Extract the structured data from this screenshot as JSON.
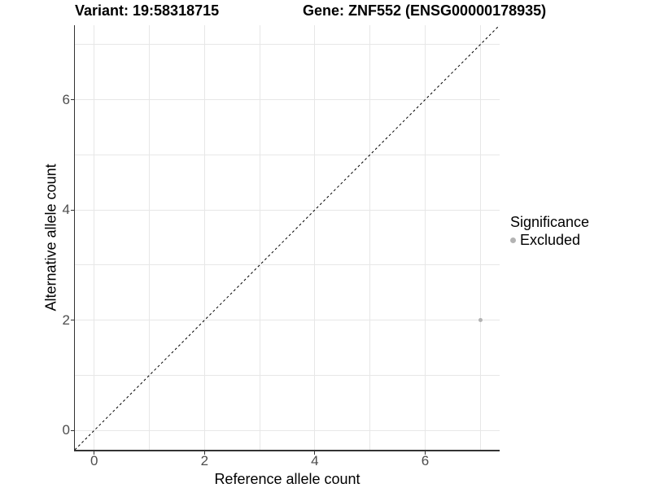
{
  "chart_data": {
    "type": "scatter",
    "title_left": "Variant: 19:58318715",
    "title_right": "Gene: ZNF552 (ENSG00000178935)",
    "xlabel": "Reference allele count",
    "ylabel": "Alternative allele count",
    "xlim": [
      -0.35,
      7.35
    ],
    "ylim": [
      -0.35,
      7.35
    ],
    "x_ticks": [
      0,
      2,
      4,
      6
    ],
    "y_ticks": [
      0,
      2,
      4,
      6
    ],
    "grid_positions": [
      0,
      1,
      2,
      3,
      4,
      5,
      6,
      7
    ],
    "grid": "on",
    "legend_position": "right",
    "identity_line": {
      "slope": 1,
      "intercept": 0,
      "style": "dashed",
      "color": "#000000"
    },
    "series": [
      {
        "name": "Excluded",
        "color": "#b3b3b3",
        "points": [
          {
            "x": 7,
            "y": 2
          }
        ]
      }
    ],
    "legend": {
      "title": "Significance",
      "entries": [
        {
          "label": "Excluded",
          "color": "#b3b3b3"
        }
      ]
    }
  },
  "colors": {
    "axis_line": "#333333",
    "tick_label": "#4d4d4d",
    "gridline": "#e7e7e7",
    "background": "#ffffff"
  }
}
